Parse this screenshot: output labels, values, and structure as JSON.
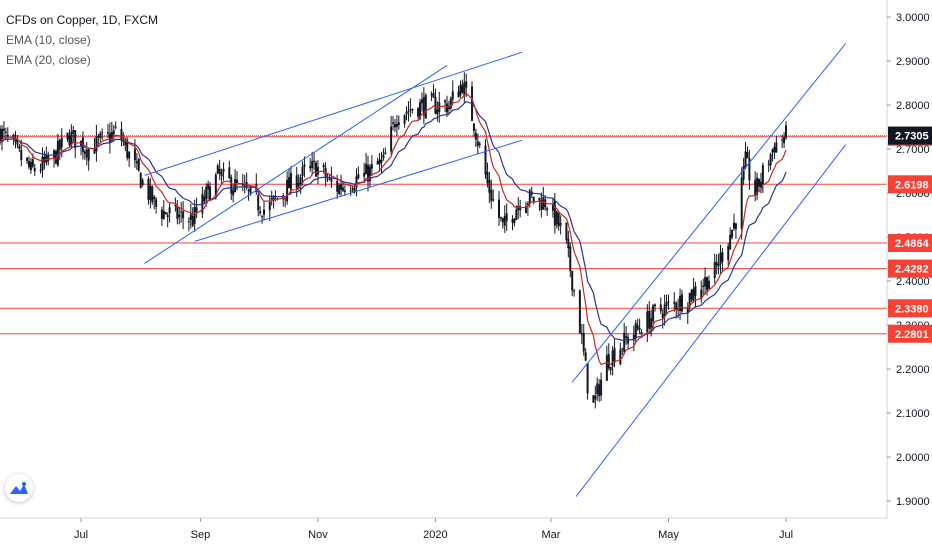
{
  "legend": {
    "symbol": "CFDs on Copper, 1D, FXCM",
    "ema10": "EMA (10, close)",
    "ema20": "EMA (20, close)"
  },
  "colors": {
    "candle": "#131722",
    "ema10": "#c62828",
    "ema20": "#283593",
    "level": "#f44336",
    "trend": "#2962ff",
    "axis_text": "#131722",
    "price_tag_dark": "#131722"
  },
  "chart_data": {
    "type": "candlestick",
    "title": "CFDs on Copper, 1D, FXCM",
    "x_ticks": [
      "Jul",
      "Sep",
      "Nov",
      "2020",
      "Mar",
      "May",
      "Jul"
    ],
    "y_ticks": [
      "1.9000",
      "2.0000",
      "2.1000",
      "2.2000",
      "2.3000",
      "2.4000",
      "2.5000",
      "2.6000",
      "2.7000",
      "2.8000",
      "2.9000",
      "3.0000"
    ],
    "ylim": [
      1.87,
      3.03
    ],
    "current_price": "2.7305",
    "horizontal_levels": [
      "2.7278",
      "2.6198",
      "2.4864",
      "2.4282",
      "2.3380",
      "2.2801"
    ],
    "close_anchors": [
      {
        "date": "2019-05-20",
        "close": 2.74
      },
      {
        "date": "2019-06-05",
        "close": 2.65
      },
      {
        "date": "2019-06-15",
        "close": 2.67
      },
      {
        "date": "2019-06-25",
        "close": 2.73
      },
      {
        "date": "2019-07-05",
        "close": 2.7
      },
      {
        "date": "2019-07-20",
        "close": 2.74
      },
      {
        "date": "2019-07-31",
        "close": 2.64
      },
      {
        "date": "2019-08-10",
        "close": 2.56
      },
      {
        "date": "2019-08-28",
        "close": 2.54
      },
      {
        "date": "2019-09-10",
        "close": 2.64
      },
      {
        "date": "2019-09-25",
        "close": 2.6
      },
      {
        "date": "2019-10-05",
        "close": 2.56
      },
      {
        "date": "2019-10-20",
        "close": 2.63
      },
      {
        "date": "2019-10-31",
        "close": 2.66
      },
      {
        "date": "2019-11-10",
        "close": 2.61
      },
      {
        "date": "2019-11-25",
        "close": 2.64
      },
      {
        "date": "2019-12-05",
        "close": 2.67
      },
      {
        "date": "2019-12-12",
        "close": 2.78
      },
      {
        "date": "2019-12-25",
        "close": 2.8
      },
      {
        "date": "2020-01-08",
        "close": 2.8
      },
      {
        "date": "2020-01-15",
        "close": 2.85
      },
      {
        "date": "2020-01-21",
        "close": 2.76
      },
      {
        "date": "2020-01-28",
        "close": 2.62
      },
      {
        "date": "2020-02-05",
        "close": 2.52
      },
      {
        "date": "2020-02-15",
        "close": 2.59
      },
      {
        "date": "2020-02-28",
        "close": 2.58
      },
      {
        "date": "2020-03-08",
        "close": 2.5
      },
      {
        "date": "2020-03-15",
        "close": 2.33
      },
      {
        "date": "2020-03-22",
        "close": 2.1
      },
      {
        "date": "2020-03-30",
        "close": 2.22
      },
      {
        "date": "2020-04-10",
        "close": 2.27
      },
      {
        "date": "2020-04-25",
        "close": 2.33
      },
      {
        "date": "2020-05-10",
        "close": 2.36
      },
      {
        "date": "2020-05-25",
        "close": 2.42
      },
      {
        "date": "2020-06-05",
        "close": 2.54
      },
      {
        "date": "2020-06-10",
        "close": 2.67
      },
      {
        "date": "2020-06-15",
        "close": 2.6
      },
      {
        "date": "2020-06-25",
        "close": 2.71
      },
      {
        "date": "2020-07-01",
        "close": 2.73
      }
    ],
    "trend_lines": [
      {
        "start": {
          "date": "2019-08-03",
          "price": 2.44
        },
        "end": {
          "date": "2020-01-07",
          "price": 2.89
        }
      },
      {
        "start": {
          "date": "2019-08-03",
          "price": 2.64
        },
        "end": {
          "date": "2020-02-15",
          "price": 2.92
        }
      },
      {
        "start": {
          "date": "2019-08-29",
          "price": 2.49
        },
        "end": {
          "date": "2020-02-15",
          "price": 2.72
        }
      },
      {
        "start": {
          "date": "2020-03-14",
          "price": 1.91
        },
        "end": {
          "date": "2020-08-01",
          "price": 2.71
        }
      },
      {
        "start": {
          "date": "2020-03-12",
          "price": 2.17
        },
        "end": {
          "date": "2020-08-01",
          "price": 2.94
        }
      }
    ]
  }
}
